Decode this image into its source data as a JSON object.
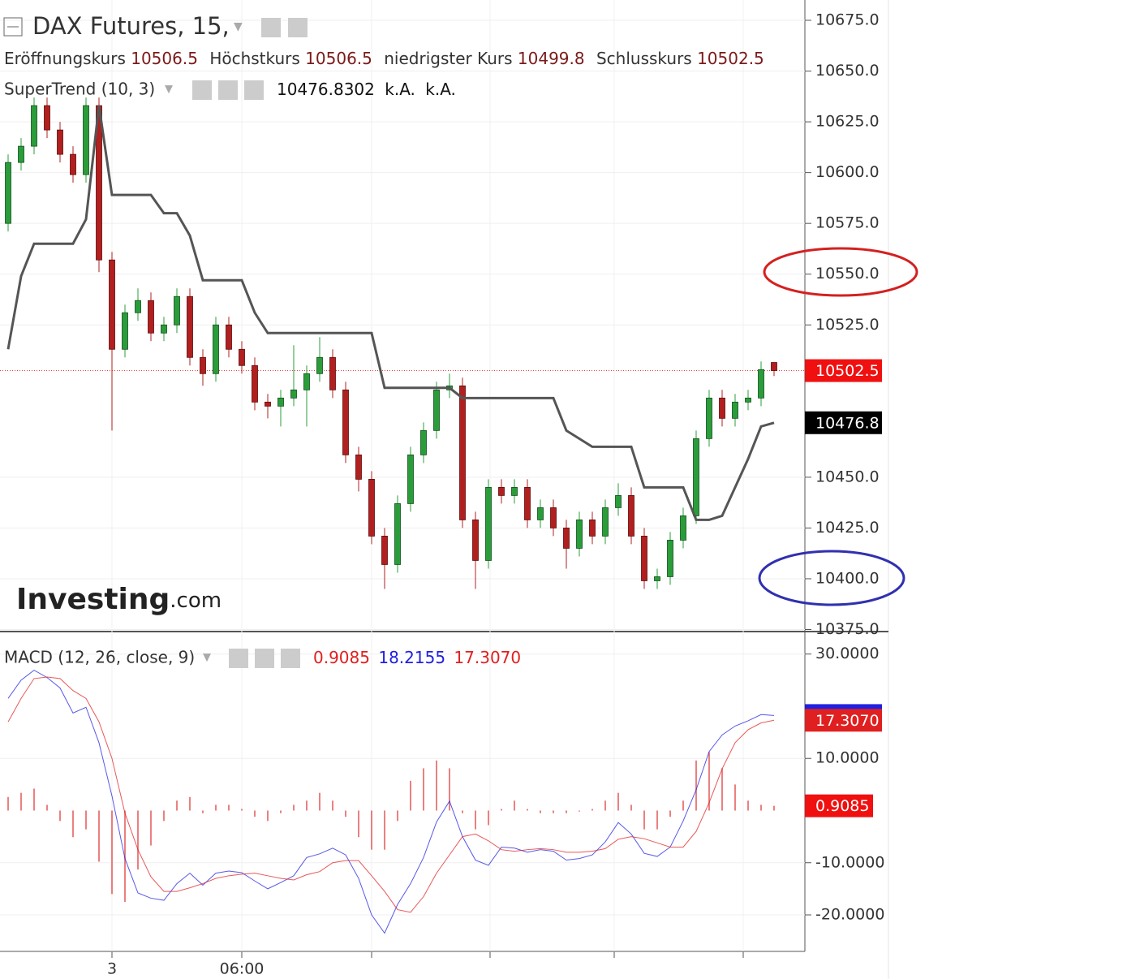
{
  "chart_data": [
    {
      "type": "candlestick",
      "title": "DAX Futures, 15,",
      "ohlc_labels": [
        "Eröffnungskurs",
        "Höchstkurs",
        "niedrigster Kurs",
        "Schlusskurs"
      ],
      "watermark": [
        "Investing",
        ".com"
      ],
      "up_color": "#2a9d3a",
      "down_color": "#b21f1f",
      "categories": [
        null,
        null,
        null,
        null,
        null,
        null,
        null,
        null,
        "3",
        null,
        null,
        null,
        null,
        null,
        null,
        null,
        null,
        null,
        "06:00",
        null,
        null,
        null,
        null,
        null,
        null,
        null,
        null,
        null,
        null,
        null,
        null,
        null,
        null,
        null,
        null,
        null,
        null,
        null,
        null,
        null,
        null,
        null,
        null,
        null,
        null,
        null,
        null,
        null,
        null,
        null,
        null,
        null,
        null,
        null,
        null,
        null,
        null,
        null,
        null,
        null
      ],
      "open": [
        10575,
        10605,
        10613,
        10633,
        10621,
        10609,
        10599,
        10633,
        10557,
        10513,
        10531,
        10537,
        10521,
        10525,
        10539,
        10509,
        10501,
        10525,
        10513,
        10505,
        10487,
        10485,
        10489,
        10493,
        10501,
        10509,
        10493,
        10461,
        10449,
        10421,
        10407,
        10437,
        10461,
        10473,
        10493,
        10495,
        10429,
        10409,
        10445,
        10441,
        10445,
        10429,
        10435,
        10425,
        10415,
        10429,
        10421,
        10435,
        10441,
        10421,
        10399,
        10401,
        10419,
        10431,
        10469,
        10489,
        10479,
        10487,
        10489,
        10506.5
      ],
      "high": [
        10609,
        10617,
        10637,
        10637,
        10625,
        10613,
        10637,
        10637,
        10561,
        10535,
        10543,
        10541,
        10529,
        10543,
        10543,
        10513,
        10529,
        10529,
        10517,
        10509,
        10491,
        10493,
        10515,
        10505,
        10519,
        10513,
        10497,
        10465,
        10453,
        10425,
        10441,
        10465,
        10477,
        10497,
        10501,
        10499,
        10433,
        10449,
        10449,
        10449,
        10449,
        10439,
        10439,
        10429,
        10433,
        10433,
        10439,
        10447,
        10445,
        10425,
        10405,
        10423,
        10435,
        10473,
        10493,
        10493,
        10491,
        10493,
        10507,
        10506.5
      ],
      "low": [
        10571,
        10601,
        10609,
        10617,
        10605,
        10595,
        10595,
        10551,
        10473,
        10509,
        10527,
        10517,
        10517,
        10521,
        10505,
        10495,
        10497,
        10509,
        10501,
        10483,
        10479,
        10475,
        10485,
        10475,
        10497,
        10489,
        10457,
        10443,
        10417,
        10395,
        10403,
        10433,
        10457,
        10469,
        10489,
        10425,
        10395,
        10405,
        10437,
        10437,
        10425,
        10425,
        10421,
        10405,
        10411,
        10417,
        10417,
        10431,
        10417,
        10395,
        10395,
        10397,
        10415,
        10427,
        10465,
        10475,
        10475,
        10483,
        10485,
        10499.8
      ],
      "close": [
        10605,
        10613,
        10633,
        10621,
        10609,
        10599,
        10633,
        10557,
        10513,
        10531,
        10537,
        10521,
        10525,
        10539,
        10509,
        10501,
        10525,
        10513,
        10505,
        10487,
        10485,
        10489,
        10493,
        10501,
        10509,
        10493,
        10461,
        10449,
        10421,
        10407,
        10437,
        10461,
        10473,
        10493,
        10495,
        10429,
        10409,
        10445,
        10441,
        10445,
        10429,
        10435,
        10425,
        10415,
        10429,
        10421,
        10435,
        10441,
        10421,
        10399,
        10401,
        10419,
        10431,
        10469,
        10489,
        10479,
        10487,
        10489,
        10503,
        10502.5
      ],
      "supertrend": {
        "title": "SuperTrend (10, 3)",
        "color": "#555555",
        "badge_label": "10476.8",
        "na_labels": [
          "k.A.",
          "k.A."
        ],
        "values": [
          10513,
          10549,
          10565,
          10565,
          10565,
          10565,
          10577,
          10633,
          10589,
          10589,
          10589,
          10589,
          10580,
          10580,
          10569,
          10547,
          10547,
          10547,
          10547,
          10531,
          10521,
          10521,
          10521,
          10521,
          10521,
          10521,
          10521,
          10521,
          10521,
          10494,
          10494,
          10494,
          10494,
          10494,
          10494,
          10489,
          10489,
          10489,
          10489,
          10489,
          10489,
          10489,
          10489,
          10473,
          10469,
          10465,
          10465,
          10465,
          10465,
          10445,
          10445,
          10445,
          10445,
          10429,
          10429,
          10431,
          10445,
          10459,
          10475,
          10476.8302
        ]
      },
      "ylim": [
        10374,
        10685
      ],
      "yticks": [
        {
          "value": 10375,
          "label": "10375.0"
        },
        {
          "value": 10400,
          "label": "10400.0"
        },
        {
          "value": 10425,
          "label": "10425.0"
        },
        {
          "value": 10450,
          "label": "10450.0"
        },
        {
          "value": 10525,
          "label": "10525.0"
        },
        {
          "value": 10550,
          "label": "10550.0"
        },
        {
          "value": 10575,
          "label": "10575.0"
        },
        {
          "value": 10600,
          "label": "10600.0"
        },
        {
          "value": 10625,
          "label": "10625.0"
        },
        {
          "value": 10650,
          "label": "10650.0"
        },
        {
          "value": 10675,
          "label": "10675.0"
        }
      ],
      "grid": true
    },
    {
      "type": "line",
      "title": "MACD (12, 26, close, 9)",
      "series": [
        {
          "kind": "bar",
          "color": "#e34a4a",
          "values": [
            2.6,
            3.4,
            4.2,
            1.1,
            -2,
            -5.1,
            -3.6,
            -9.8,
            -16,
            -17.5,
            -11.3,
            -6.7,
            -2,
            1.9,
            2.6,
            -0.5,
            1.1,
            1.1,
            0.3,
            -1.2,
            -2,
            -0.5,
            1.1,
            1.9,
            3.4,
            1.9,
            -1.2,
            -5.1,
            -7.5,
            -7.5,
            -2,
            5.7,
            8.1,
            9.6,
            8.1,
            -0.5,
            -3.6,
            -2.8,
            0.3,
            1.9,
            0.3,
            -0.5,
            -0.5,
            -0.5,
            -0.2,
            0.3,
            1.9,
            3.4,
            1.1,
            -3.6,
            -3.6,
            -1.2,
            1.9,
            9.6,
            11.2,
            8.1,
            5,
            1.9,
            1.1,
            0.9085
          ]
        },
        {
          "kind": "line",
          "color": "#2020e0",
          "values": [
            21.5,
            25,
            26.9,
            25.5,
            23.5,
            18.7,
            19.8,
            13,
            2.8,
            -9.2,
            -15.8,
            -16.8,
            -17.2,
            -14,
            -12,
            -14.3,
            -12,
            -11.6,
            -11.9,
            -13.5,
            -15,
            -13.8,
            -12.5,
            -9,
            -8.3,
            -7.2,
            -8.5,
            -13,
            -20,
            -23.5,
            -18,
            -14,
            -9,
            -2.2,
            1.8,
            -5,
            -9.5,
            -10.5,
            -7,
            -7.2,
            -8,
            -7.5,
            -7.8,
            -9.5,
            -9.2,
            -8.5,
            -6,
            -2.3,
            -4.5,
            -8.2,
            -8.8,
            -7,
            -2,
            4,
            11.3,
            14.5,
            16.2,
            17.2,
            18.4,
            18.2155
          ]
        },
        {
          "kind": "line",
          "color": "#e02020",
          "last_label": "17.3070",
          "values": [
            17,
            21.5,
            25.3,
            25.6,
            25.3,
            23,
            21.5,
            17,
            10,
            -0.5,
            -7.5,
            -12.7,
            -15.5,
            -15.5,
            -14.8,
            -14,
            -13,
            -12.5,
            -12.2,
            -12,
            -12.5,
            -13,
            -13.3,
            -12.3,
            -11.7,
            -10,
            -9.6,
            -9.6,
            -12.5,
            -15.5,
            -19,
            -19.5,
            -16.5,
            -12,
            -8.5,
            -5,
            -4.5,
            -5.8,
            -7.5,
            -7.8,
            -7.5,
            -7.3,
            -7.5,
            -8,
            -8,
            -7.8,
            -7.3,
            -5.5,
            -5,
            -5.4,
            -6.2,
            -7,
            -7,
            -4,
            1.5,
            8,
            13,
            15.5,
            16.8,
            17.307
          ]
        }
      ],
      "ylim": [
        -27,
        34
      ],
      "yticks": [
        {
          "value": 30,
          "label": "30.0000"
        },
        {
          "value": 10,
          "label": "10.0000"
        },
        {
          "value": -10,
          "label": "-10.0000"
        },
        {
          "value": -20,
          "label": "-20.0000"
        }
      ],
      "grid": true
    }
  ]
}
